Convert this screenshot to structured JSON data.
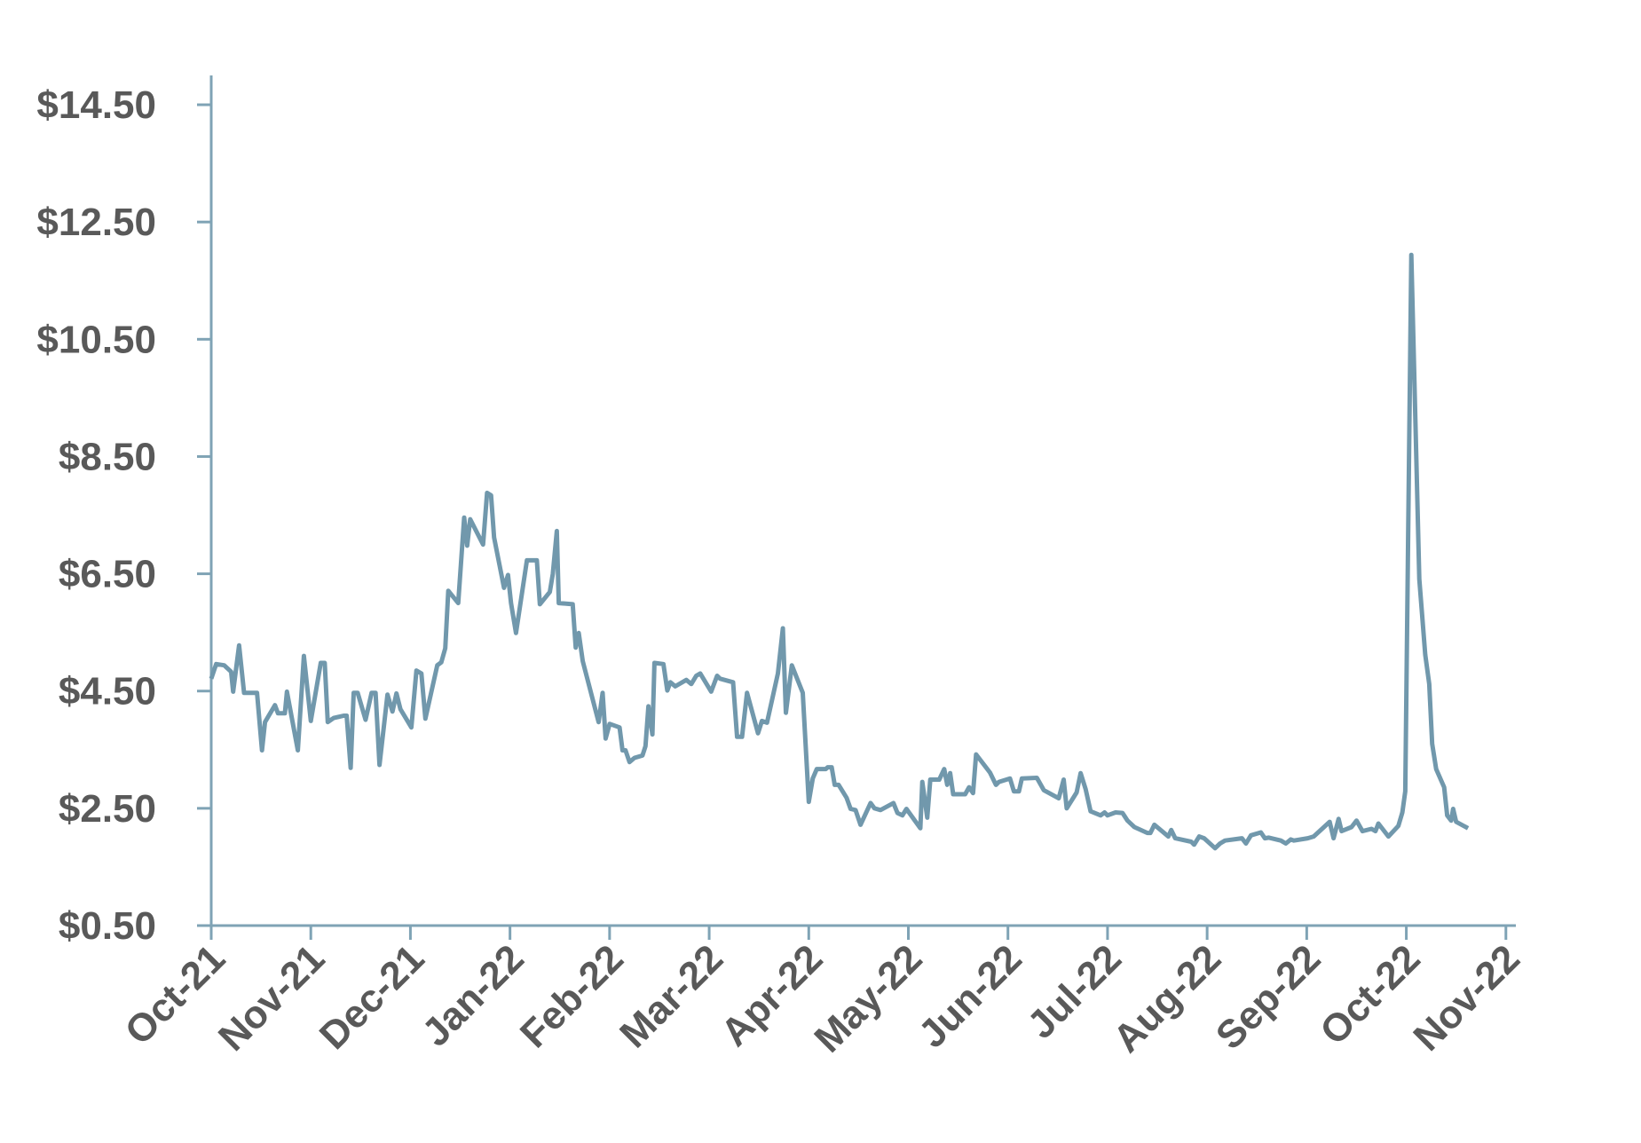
{
  "chart_data": {
    "type": "line",
    "x": [
      0,
      0.05,
      0.13,
      0.2,
      0.22,
      0.28,
      0.33,
      0.46,
      0.51,
      0.54,
      0.64,
      0.67,
      0.74,
      0.76,
      0.87,
      0.93,
      1.0,
      1.1,
      1.14,
      1.17,
      1.23,
      1.33,
      1.36,
      1.4,
      1.43,
      1.47,
      1.55,
      1.61,
      1.65,
      1.69,
      1.77,
      1.82,
      1.86,
      1.9,
      2.01,
      2.06,
      2.11,
      2.15,
      2.27,
      2.31,
      2.35,
      2.38,
      2.48,
      2.54,
      2.57,
      2.6,
      2.73,
      2.77,
      2.81,
      2.84,
      2.94,
      2.98,
      3.01,
      3.06,
      3.17,
      3.27,
      3.3,
      3.4,
      3.43,
      3.47,
      3.49,
      3.63,
      3.66,
      3.69,
      3.73,
      3.89,
      3.93,
      3.96,
      4.0,
      4.1,
      4.13,
      4.16,
      4.2,
      4.25,
      4.33,
      4.36,
      4.39,
      4.43,
      4.45,
      4.54,
      4.58,
      4.61,
      4.66,
      4.77,
      4.82,
      4.87,
      4.91,
      5.02,
      5.08,
      5.11,
      5.24,
      5.28,
      5.33,
      5.38,
      5.49,
      5.53,
      5.58,
      5.69,
      5.74,
      5.77,
      5.83,
      5.94,
      6.0,
      6.04,
      6.08,
      6.17,
      6.19,
      6.23,
      6.26,
      6.3,
      6.38,
      6.42,
      6.47,
      6.52,
      6.62,
      6.66,
      6.72,
      6.85,
      6.89,
      6.94,
      6.98,
      7.12,
      7.14,
      7.19,
      7.22,
      7.31,
      7.36,
      7.39,
      7.42,
      7.45,
      7.57,
      7.61,
      7.65,
      7.68,
      7.82,
      7.88,
      7.91,
      8.02,
      8.06,
      8.11,
      8.14,
      8.29,
      8.36,
      8.51,
      8.56,
      8.59,
      8.69,
      8.73,
      8.78,
      8.83,
      8.93,
      8.97,
      9.0,
      9.08,
      9.15,
      9.2,
      9.27,
      9.4,
      9.43,
      9.47,
      9.61,
      9.64,
      9.68,
      9.84,
      9.87,
      9.92,
      9.97,
      10.08,
      10.13,
      10.18,
      10.35,
      10.39,
      10.44,
      10.54,
      10.58,
      10.62,
      10.74,
      10.79,
      10.84,
      10.87,
      11.01,
      11.07,
      11.23,
      11.27,
      11.32,
      11.35,
      11.45,
      11.5,
      11.56,
      11.65,
      11.69,
      11.72,
      11.82,
      11.92,
      11.96,
      11.99,
      12.05,
      12.13,
      12.19,
      12.23,
      12.26,
      12.3,
      12.38,
      12.41,
      12.45,
      12.47,
      12.5,
      12.62
    ],
    "values": [
      4.71,
      4.96,
      4.94,
      4.83,
      4.49,
      5.28,
      4.47,
      4.47,
      3.49,
      3.97,
      4.26,
      4.12,
      4.12,
      4.49,
      3.49,
      5.1,
      3.99,
      4.98,
      4.98,
      3.97,
      4.04,
      4.08,
      4.08,
      3.19,
      4.47,
      4.47,
      4.01,
      4.47,
      4.47,
      3.24,
      4.44,
      4.15,
      4.46,
      4.19,
      3.88,
      4.85,
      4.8,
      4.03,
      4.94,
      4.99,
      5.23,
      6.21,
      6.0,
      7.46,
      6.98,
      7.43,
      7.0,
      7.88,
      7.84,
      7.12,
      6.26,
      6.48,
      6.0,
      5.49,
      6.73,
      6.73,
      5.98,
      6.19,
      6.5,
      7.23,
      6.0,
      5.98,
      5.24,
      5.49,
      5.01,
      3.97,
      4.47,
      3.69,
      3.94,
      3.88,
      3.49,
      3.49,
      3.29,
      3.36,
      3.4,
      3.56,
      4.24,
      3.76,
      4.98,
      4.96,
      4.51,
      4.65,
      4.58,
      4.69,
      4.62,
      4.76,
      4.8,
      4.49,
      4.76,
      4.71,
      4.65,
      3.72,
      3.72,
      4.47,
      3.78,
      3.99,
      3.96,
      4.8,
      5.57,
      4.13,
      4.94,
      4.47,
      2.61,
      3.01,
      3.17,
      3.17,
      3.2,
      3.2,
      2.9,
      2.9,
      2.68,
      2.49,
      2.47,
      2.22,
      2.59,
      2.5,
      2.47,
      2.59,
      2.42,
      2.38,
      2.49,
      2.16,
      2.95,
      2.34,
      2.99,
      2.99,
      3.17,
      2.9,
      3.1,
      2.74,
      2.74,
      2.86,
      2.76,
      3.42,
      3.11,
      2.9,
      2.95,
      3.01,
      2.79,
      2.79,
      3.01,
      3.02,
      2.81,
      2.67,
      2.99,
      2.5,
      2.77,
      3.1,
      2.83,
      2.45,
      2.38,
      2.43,
      2.38,
      2.43,
      2.42,
      2.29,
      2.18,
      2.08,
      2.08,
      2.22,
      2.02,
      2.13,
      1.99,
      1.93,
      1.88,
      2.02,
      1.99,
      1.82,
      1.9,
      1.95,
      1.99,
      1.9,
      2.04,
      2.09,
      1.99,
      2.0,
      1.95,
      1.9,
      1.97,
      1.95,
      1.99,
      2.02,
      2.27,
      1.99,
      2.32,
      2.11,
      2.18,
      2.29,
      2.11,
      2.15,
      2.11,
      2.24,
      2.02,
      2.2,
      2.43,
      2.79,
      11.94,
      6.41,
      5.12,
      4.62,
      3.6,
      3.17,
      2.86,
      2.38,
      2.29,
      2.49,
      2.27,
      2.16
    ],
    "color": "#7198ac",
    "xlim": [
      0,
      13.1
    ],
    "xticks": [
      {
        "value": 0,
        "label": "Oct-21"
      },
      {
        "value": 1,
        "label": "Nov-21"
      },
      {
        "value": 2,
        "label": "Dec-21"
      },
      {
        "value": 3,
        "label": "Jan-22"
      },
      {
        "value": 4,
        "label": "Feb-22"
      },
      {
        "value": 5,
        "label": "Mar-22"
      },
      {
        "value": 6,
        "label": "Apr-22"
      },
      {
        "value": 7,
        "label": "May-22"
      },
      {
        "value": 8,
        "label": "Jun-22"
      },
      {
        "value": 9,
        "label": "Jul-22"
      },
      {
        "value": 10,
        "label": "Aug-22"
      },
      {
        "value": 11,
        "label": "Sep-22"
      },
      {
        "value": 12,
        "label": "Oct-22"
      },
      {
        "value": 13,
        "label": "Nov-22"
      }
    ],
    "ylim": [
      0.5,
      15
    ],
    "yticks": [
      {
        "value": 0.5,
        "label": "$0.50"
      },
      {
        "value": 2.5,
        "label": "$2.50"
      },
      {
        "value": 4.5,
        "label": "$4.50"
      },
      {
        "value": 6.5,
        "label": "$6.50"
      },
      {
        "value": 8.5,
        "label": "$8.50"
      },
      {
        "value": 10.5,
        "label": "$10.50"
      },
      {
        "value": 12.5,
        "label": "$12.50"
      },
      {
        "value": 14.5,
        "label": "$14.50"
      }
    ],
    "grid": false
  }
}
